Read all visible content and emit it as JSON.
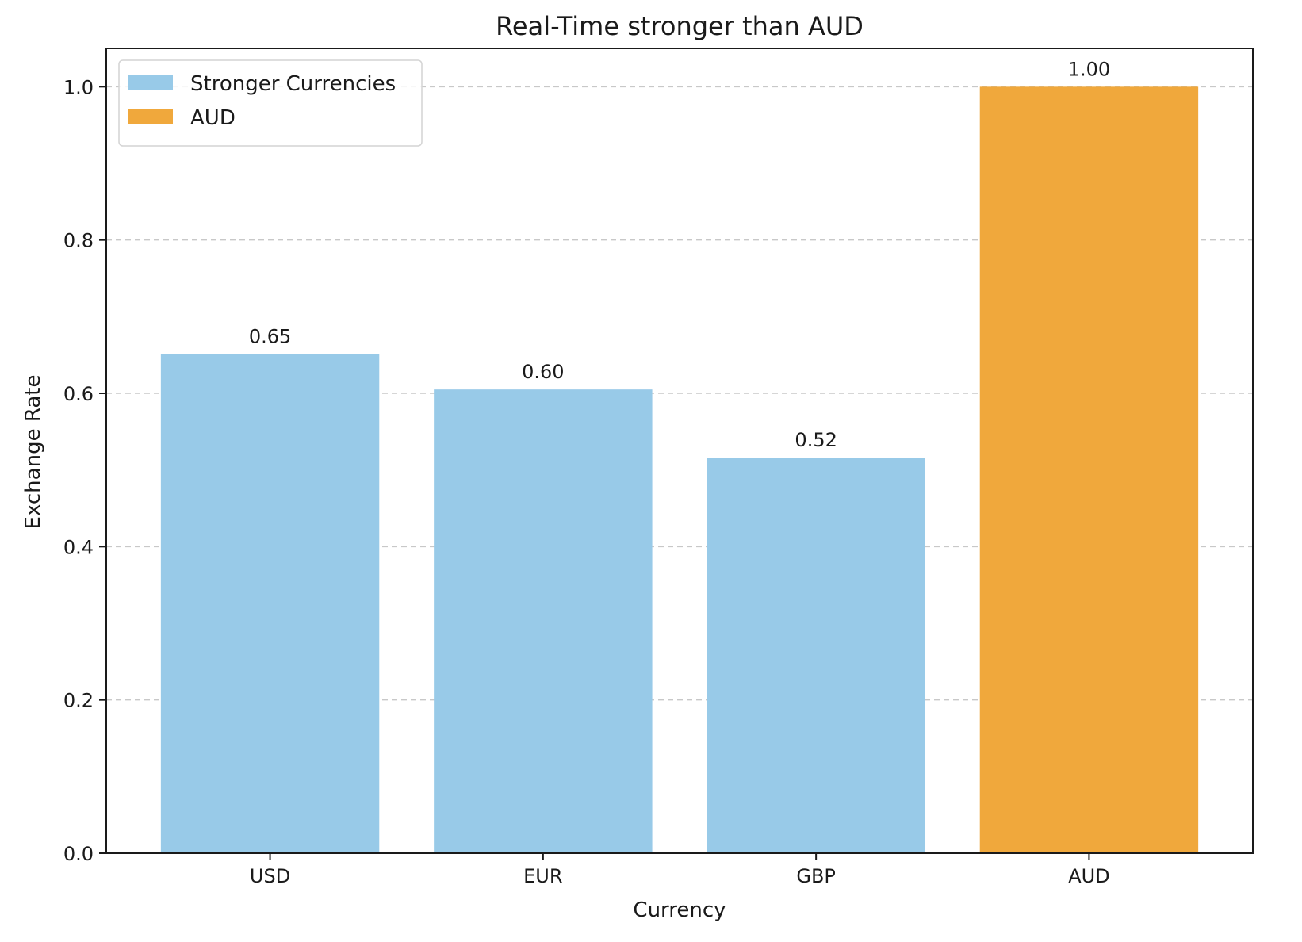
{
  "chart_data": {
    "type": "bar",
    "title": "Real-Time stronger than AUD",
    "xlabel": "Currency",
    "ylabel": "Exchange Rate",
    "categories": [
      "USD",
      "EUR",
      "GBP",
      "AUD"
    ],
    "values": [
      0.651,
      0.605,
      0.516,
      1.0
    ],
    "value_labels": [
      "0.65",
      "0.60",
      "0.52",
      "1.00"
    ],
    "bar_groups": [
      "Stronger Currencies",
      "Stronger Currencies",
      "Stronger Currencies",
      "AUD"
    ],
    "ylim": [
      0,
      1.05
    ],
    "yticks": [
      0.0,
      0.2,
      0.4,
      0.6,
      0.8,
      1.0
    ],
    "ytick_labels": [
      "0.0",
      "0.2",
      "0.4",
      "0.6",
      "0.8",
      "1.0"
    ],
    "grid": {
      "y": true,
      "style": "dashed"
    },
    "legend": {
      "position": "top-left",
      "entries": [
        {
          "label": "Stronger Currencies",
          "color": "#98cae8"
        },
        {
          "label": "AUD",
          "color": "#f0a83c"
        }
      ]
    },
    "colors": {
      "Stronger Currencies": "#98cae8",
      "AUD": "#f0a83c",
      "grid": "#c8c8c8",
      "axis": "#1a1a1a"
    }
  }
}
